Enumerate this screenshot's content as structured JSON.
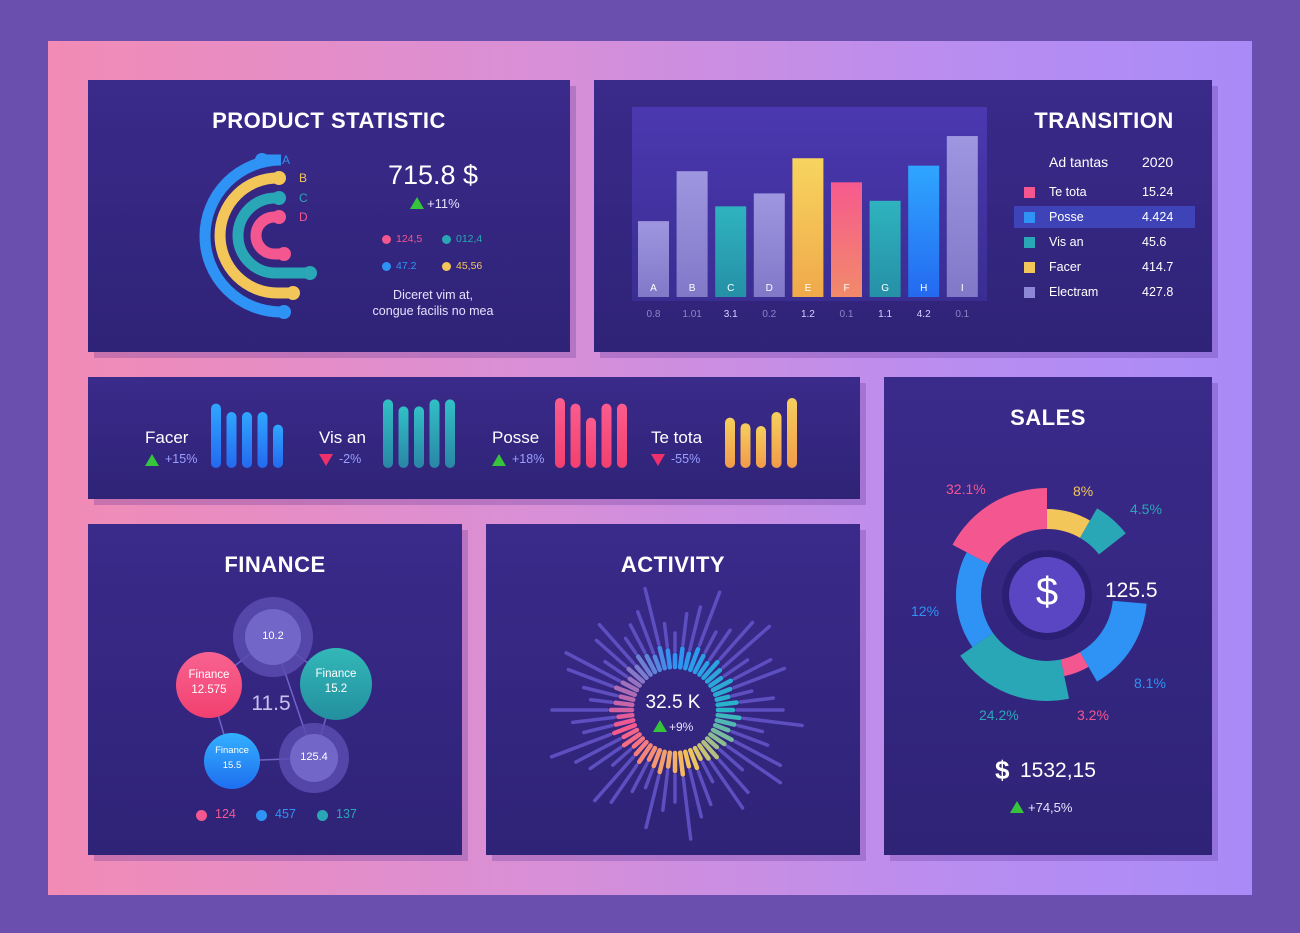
{
  "colors": {
    "pink": "#f4578f",
    "blue": "#2e93f5",
    "teal": "#2aa7b6",
    "yellow": "#f3c65a",
    "lavender": "#8e86d6",
    "green": "#35c43b",
    "red": "#f0306a"
  },
  "product": {
    "title": "PRODUCT STATISTIC",
    "arc_labels": [
      "A",
      "B",
      "C",
      "D"
    ],
    "amount": "715.8 $",
    "change": "+11%",
    "stats": [
      {
        "value": "124,5",
        "color": "pink"
      },
      {
        "value": "012,4",
        "color": "teal"
      },
      {
        "value": "47.2",
        "color": "blue"
      },
      {
        "value": "45,56",
        "color": "yellow"
      }
    ],
    "note_line1": "Diceret vim at,",
    "note_line2": "congue facilis no mea"
  },
  "transition": {
    "title": "TRANSITION",
    "legend_header": {
      "label": "Ad tantas",
      "year": "2020"
    },
    "legend": [
      {
        "label": "Te tota",
        "value": "15.24",
        "color": "pink",
        "selected": false
      },
      {
        "label": "Posse",
        "value": "4.424",
        "color": "blue",
        "selected": true
      },
      {
        "label": "Vis an",
        "value": "45.6",
        "color": "teal",
        "selected": false
      },
      {
        "label": "Facer",
        "value": "414.7",
        "color": "yellow",
        "selected": false
      },
      {
        "label": "Electram",
        "value": "427.8",
        "color": "lavender",
        "selected": false
      }
    ]
  },
  "chart_data": {
    "type": "bar",
    "categories": [
      "A",
      "B",
      "C",
      "D",
      "E",
      "F",
      "G",
      "H",
      "I"
    ],
    "values": [
      0.8,
      1.01,
      3.1,
      0.2,
      1.2,
      0.1,
      1.1,
      4.2,
      0.1
    ],
    "relative_heights": [
      0.41,
      0.68,
      0.49,
      0.56,
      0.75,
      0.62,
      0.52,
      0.71,
      0.87
    ],
    "bar_colors": [
      "lavender",
      "lavender",
      "teal",
      "lavender",
      "yellow",
      "pink",
      "teal",
      "blue",
      "lavender"
    ],
    "title": "",
    "xlabel": "",
    "ylabel": ""
  },
  "kpis": [
    {
      "label": "Facer",
      "change": "+15%",
      "direction": "up",
      "color": "blue",
      "bars": [
        0.92,
        0.8,
        0.8,
        0.8,
        0.62
      ]
    },
    {
      "label": "Vis an",
      "change": "-2%",
      "direction": "down",
      "color": "teal",
      "bars": [
        0.98,
        0.88,
        0.88,
        0.98,
        0.98
      ]
    },
    {
      "label": "Posse",
      "change": "+18%",
      "direction": "up",
      "color": "pink",
      "bars": [
        1.0,
        0.92,
        0.72,
        0.92,
        0.92
      ]
    },
    {
      "label": "Te tota",
      "change": "-55%",
      "direction": "down",
      "color": "yellow",
      "bars": [
        0.72,
        0.64,
        0.6,
        0.8,
        1.0
      ]
    }
  ],
  "finance": {
    "title": "FINANCE",
    "center": "11.5",
    "nodes": [
      {
        "line1": "",
        "line2": "10.2",
        "color": "lavender"
      },
      {
        "line1": "Finance",
        "line2": "15.2",
        "color": "teal"
      },
      {
        "line1": "",
        "line2": "125.4",
        "color": "lavender"
      },
      {
        "line1": "Finance",
        "line2": "15.5",
        "color": "blue"
      },
      {
        "line1": "Finance",
        "line2": "12.575",
        "color": "pink"
      }
    ],
    "legend": [
      {
        "value": "124",
        "color": "pink"
      },
      {
        "value": "457",
        "color": "blue"
      },
      {
        "value": "137",
        "color": "teal"
      }
    ]
  },
  "activity": {
    "title": "ACTIVITY",
    "value": "32.5 K",
    "change": "+9%"
  },
  "sales": {
    "title": "SALES",
    "center_symbol": "$",
    "center_value": "125.5",
    "segments": [
      {
        "label": "32.1%",
        "color": "pink"
      },
      {
        "label": "8%",
        "color": "yellow"
      },
      {
        "label": "4.5%",
        "color": "teal"
      },
      {
        "label": "8.1%",
        "color": "blue"
      },
      {
        "label": "3.2%",
        "color": "pink"
      },
      {
        "label": "24.2%",
        "color": "teal"
      },
      {
        "label": "12%",
        "color": "blue"
      }
    ],
    "total_symbol": "$",
    "total": "1532,15",
    "change": "+74,5%"
  }
}
